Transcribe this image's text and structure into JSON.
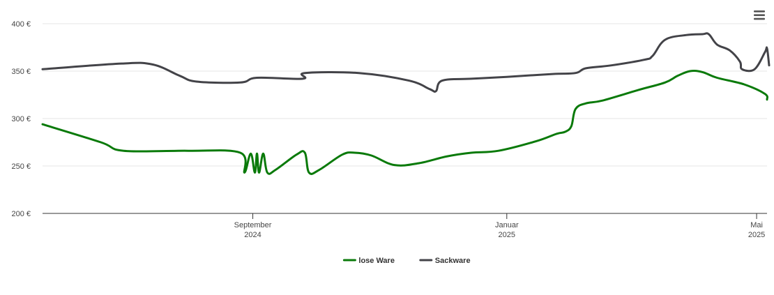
{
  "chart_data": {
    "type": "line",
    "title": "",
    "xlabel": "",
    "ylabel": "",
    "ylim": [
      200,
      400
    ],
    "y_ticks": [
      200,
      250,
      300,
      350,
      400
    ],
    "y_tick_format": "{v} €",
    "x_ticks": [
      {
        "date": "2024-09-01",
        "line1": "September",
        "line2": "2024"
      },
      {
        "date": "2025-01-01",
        "line1": "Januar",
        "line2": "2025"
      },
      {
        "date": "2025-05-01",
        "line1": "Mai",
        "line2": "2025"
      }
    ],
    "x_range": [
      "2024-05-23",
      "2025-05-06"
    ],
    "grid": true,
    "legend_position": "bottom-center",
    "series": [
      {
        "name": "lose Ware",
        "color": "#0a7a0a",
        "points": [
          [
            "2024-05-23",
            294
          ],
          [
            "2024-06-20",
            275
          ],
          [
            "2024-07-01",
            266
          ],
          [
            "2024-08-01",
            266
          ],
          [
            "2024-08-26",
            264
          ],
          [
            "2024-08-28",
            243
          ],
          [
            "2024-08-31",
            263
          ],
          [
            "2024-09-02",
            243
          ],
          [
            "2024-09-03",
            263
          ],
          [
            "2024-09-04",
            243
          ],
          [
            "2024-09-06",
            263
          ],
          [
            "2024-09-08",
            243
          ],
          [
            "2024-09-12",
            246
          ],
          [
            "2024-09-22",
            262
          ],
          [
            "2024-09-26",
            264
          ],
          [
            "2024-09-28",
            243
          ],
          [
            "2024-10-03",
            246
          ],
          [
            "2024-10-14",
            262
          ],
          [
            "2024-10-20",
            264
          ],
          [
            "2024-10-28",
            261
          ],
          [
            "2024-11-08",
            251
          ],
          [
            "2024-11-20",
            253
          ],
          [
            "2024-12-03",
            260
          ],
          [
            "2024-12-15",
            264
          ],
          [
            "2024-12-28",
            266
          ],
          [
            "2025-01-15",
            276
          ],
          [
            "2025-01-25",
            284
          ],
          [
            "2025-01-29",
            286
          ],
          [
            "2025-02-01",
            292
          ],
          [
            "2025-02-03",
            310
          ],
          [
            "2025-02-08",
            316
          ],
          [
            "2025-02-16",
            319
          ],
          [
            "2025-03-05",
            330
          ],
          [
            "2025-03-18",
            338
          ],
          [
            "2025-03-24",
            345
          ],
          [
            "2025-03-30",
            350
          ],
          [
            "2025-04-05",
            349
          ],
          [
            "2025-04-12",
            343
          ],
          [
            "2025-04-25",
            336
          ],
          [
            "2025-05-05",
            326
          ],
          [
            "2025-05-06",
            320
          ]
        ]
      },
      {
        "name": "Sackware",
        "color": "#434348",
        "points": [
          [
            "2024-05-23",
            352
          ],
          [
            "2024-06-30",
            358
          ],
          [
            "2024-07-15",
            357
          ],
          [
            "2024-07-28",
            345
          ],
          [
            "2024-08-05",
            339
          ],
          [
            "2024-08-26",
            338
          ],
          [
            "2024-09-03",
            343
          ],
          [
            "2024-09-25",
            342
          ],
          [
            "2024-09-26",
            348
          ],
          [
            "2024-10-22",
            348
          ],
          [
            "2024-11-15",
            340
          ],
          [
            "2024-11-25",
            331
          ],
          [
            "2024-11-28",
            329
          ],
          [
            "2024-12-01",
            340
          ],
          [
            "2024-12-15",
            342
          ],
          [
            "2025-01-01",
            344
          ],
          [
            "2025-01-23",
            347
          ],
          [
            "2025-02-03",
            348
          ],
          [
            "2025-02-08",
            353
          ],
          [
            "2025-02-20",
            356
          ],
          [
            "2025-03-08",
            362
          ],
          [
            "2025-03-12",
            366
          ],
          [
            "2025-03-18",
            383
          ],
          [
            "2025-03-28",
            388
          ],
          [
            "2025-04-05",
            389
          ],
          [
            "2025-04-08",
            389
          ],
          [
            "2025-04-12",
            378
          ],
          [
            "2025-04-18",
            372
          ],
          [
            "2025-04-23",
            360
          ],
          [
            "2025-04-24",
            352
          ],
          [
            "2025-04-30",
            352
          ],
          [
            "2025-05-05",
            370
          ],
          [
            "2025-05-06",
            374
          ],
          [
            "2025-05-07",
            356
          ]
        ]
      }
    ]
  },
  "ui": {
    "menu_icon": "hamburger-menu-icon"
  }
}
